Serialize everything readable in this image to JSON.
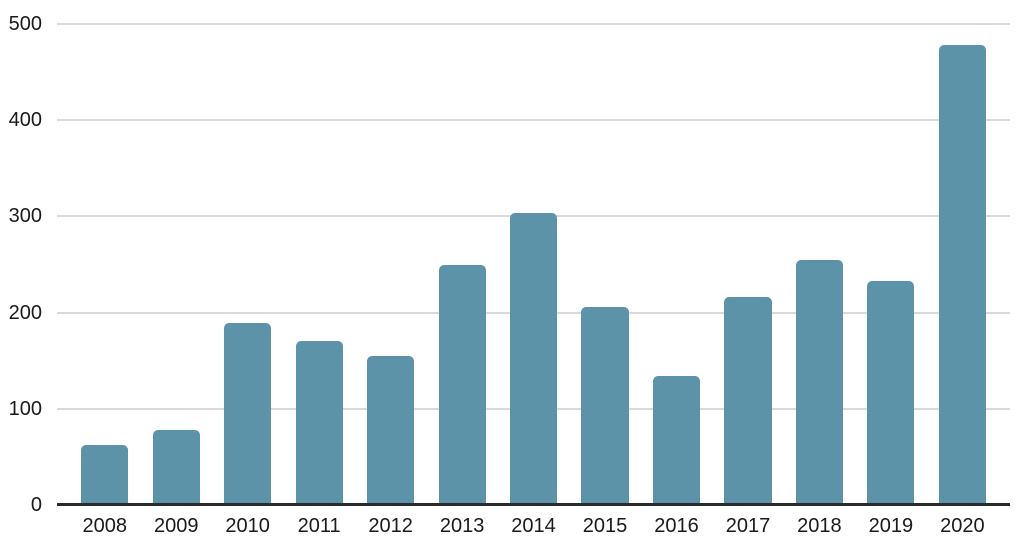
{
  "chart_data": {
    "type": "bar",
    "categories": [
      "2008",
      "2009",
      "2010",
      "2011",
      "2012",
      "2013",
      "2014",
      "2015",
      "2016",
      "2017",
      "2018",
      "2019",
      "2020"
    ],
    "values": [
      62,
      78,
      189,
      170,
      155,
      250,
      304,
      206,
      134,
      216,
      255,
      233,
      478
    ],
    "xlabel": "",
    "ylabel": "",
    "ylim": [
      0,
      500
    ],
    "yticks": [
      0,
      100,
      200,
      300,
      400,
      500
    ],
    "grid": true,
    "legend": false,
    "colors": {
      "bar": "#5C93A9",
      "gridline": "#DADADA",
      "axis_line": "#2B2B2B",
      "tick_text": "#1A1A1A",
      "background": "#FFFFFF"
    }
  }
}
